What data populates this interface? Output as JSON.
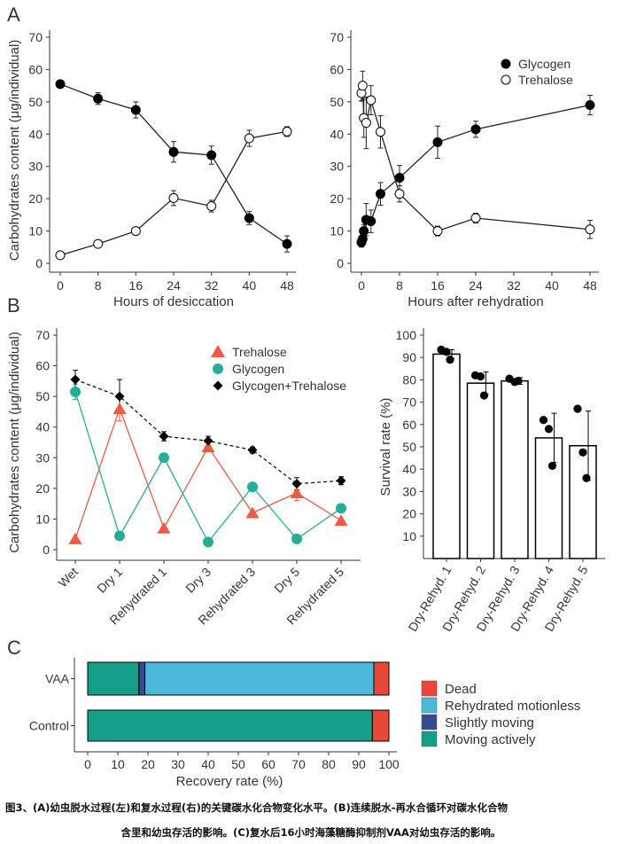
{
  "caption": {
    "line1": "图3、(A)幼虫脱水过程(左)和复水过程(右)的关键碳水化合物变化水平。(B)连续脱水-再水合循环对碳水化合物",
    "line2": "含里和幼虫存活的影响。(C)复水后16小时海藻糖酶抑制剂VAA对幼虫存活的影响。"
  },
  "panel_letters": [
    "A",
    "B",
    "C"
  ],
  "colors": {
    "trehalose_b": "#ef5a42",
    "glycogen_b": "#26ad98",
    "dead": "#e8473a",
    "rehydrated_motionless": "#4cb9db",
    "slightly_moving": "#334c8c",
    "moving_actively": "#14a088"
  },
  "chart_data": [
    {
      "panel": "A-left",
      "type": "line",
      "xlabel": "Hours of desiccation",
      "ylabel": "Carbohydrates content (μg/individual)",
      "xlim": [
        0,
        48
      ],
      "ylim": [
        0,
        70
      ],
      "xticks": [
        0,
        8,
        16,
        24,
        32,
        40,
        48
      ],
      "yticks": [
        0,
        10,
        20,
        30,
        40,
        50,
        60,
        70
      ],
      "series": [
        {
          "name": "Glycogen",
          "x": [
            0,
            8,
            16,
            24,
            32,
            40,
            48
          ],
          "values": [
            55.5,
            51,
            47.5,
            34.5,
            33.5,
            14,
            6
          ],
          "err": [
            0.7,
            1.8,
            2.5,
            3.2,
            2.8,
            2.0,
            2.5
          ]
        },
        {
          "name": "Trehalose",
          "x": [
            0,
            8,
            16,
            24,
            32,
            40,
            48
          ],
          "values": [
            2.5,
            6,
            10,
            20.2,
            17.7,
            38.7,
            40.8
          ],
          "err": [
            0.5,
            0.7,
            0.8,
            2.3,
            1.8,
            2.5,
            1.5
          ]
        }
      ]
    },
    {
      "panel": "A-right",
      "type": "line",
      "xlabel": "Hours after rehydration",
      "ylabel": "",
      "xlim": [
        0,
        48
      ],
      "ylim": [
        0,
        70
      ],
      "xticks": [
        0,
        8,
        16,
        24,
        32,
        40,
        48
      ],
      "yticks": [
        0,
        10,
        20,
        30,
        40,
        50,
        60,
        70
      ],
      "legend": [
        "Glycogen",
        "Trehalose"
      ],
      "series": [
        {
          "name": "Glycogen",
          "x": [
            0,
            0.25,
            0.5,
            1,
            2,
            4,
            8,
            16,
            24,
            48
          ],
          "values": [
            6.5,
            7.5,
            10,
            13.5,
            13,
            21.5,
            26.5,
            37.5,
            41.5,
            49
          ],
          "err": [
            1.5,
            1.8,
            2.0,
            5.0,
            3.5,
            3.5,
            3.8,
            5.0,
            2.5,
            3.0
          ]
        },
        {
          "name": "Trehalose",
          "x": [
            0,
            0.25,
            0.5,
            1,
            2,
            4,
            8,
            16,
            24,
            48
          ],
          "values": [
            52.7,
            55,
            45,
            43.5,
            50.5,
            40.7,
            21.5,
            10,
            14,
            10.5
          ],
          "err": [
            2.5,
            4.5,
            6.0,
            8.0,
            4.5,
            5.0,
            2.5,
            1.5,
            1.5,
            2.8
          ]
        }
      ]
    },
    {
      "panel": "B-left",
      "type": "line",
      "xlabel": "",
      "ylabel": "Carbohydrates content (μg/individual)",
      "ylim": [
        0,
        70
      ],
      "yticks": [
        0,
        10,
        20,
        30,
        40,
        50,
        60,
        70
      ],
      "categories": [
        "Wet",
        "Dry 1",
        "Rehydrated 1",
        "Dry 3",
        "Rehydrated 3",
        "Dry 5",
        "Rehydrated 5"
      ],
      "legend": [
        "Trehalose",
        "Glycogen",
        "Glycogen+Trehalose"
      ],
      "series": [
        {
          "name": "Trehalose",
          "values": [
            3.5,
            46,
            7,
            33.5,
            12,
            18.5,
            9.5
          ],
          "err": [
            0,
            4,
            0,
            1.5,
            0,
            2.5,
            0
          ]
        },
        {
          "name": "Glycogen",
          "values": [
            51.5,
            4.5,
            30,
            2.5,
            20.5,
            3.5,
            13.5
          ],
          "err": [
            2.5,
            0,
            1.5,
            0,
            0,
            0,
            0
          ]
        },
        {
          "name": "Glycogen+Trehalose",
          "values": [
            55.5,
            50,
            37,
            35.5,
            32.5,
            21.5,
            22.5
          ],
          "err": [
            3,
            5.5,
            1.5,
            1.5,
            1,
            2,
            1.3
          ]
        }
      ]
    },
    {
      "panel": "B-right",
      "type": "bar",
      "ylabel": "Survival rate (%)",
      "ylim": [
        0,
        100
      ],
      "yticks": [
        10,
        20,
        30,
        40,
        50,
        60,
        70,
        80,
        90,
        100
      ],
      "categories": [
        "Dry-Rehyd. 1",
        "Dry-Rehyd. 2",
        "Dry-Rehyd. 3",
        "Dry-Rehyd. 4",
        "Dry-Rehyd. 5"
      ],
      "values": [
        91.5,
        78.5,
        79.5,
        54,
        50.5
      ],
      "err": [
        2,
        5,
        1.5,
        11,
        15.5
      ],
      "points": [
        [
          93.5,
          92.5,
          89
        ],
        [
          82,
          81.5,
          73
        ],
        [
          80.5,
          79,
          79.5
        ],
        [
          62,
          58,
          41.5
        ],
        [
          67,
          47.5,
          36
        ]
      ]
    },
    {
      "panel": "C",
      "type": "bar",
      "orientation": "horizontal-stacked",
      "xlabel": "Recovery rate (%)",
      "xlim": [
        0,
        100
      ],
      "xticks": [
        0,
        10,
        20,
        30,
        40,
        50,
        60,
        70,
        80,
        90,
        100
      ],
      "categories": [
        "VAA",
        "Control"
      ],
      "legend": [
        "Dead",
        "Rehydrated motionless",
        "Slightly moving",
        "Moving actively"
      ],
      "series": [
        {
          "name": "Moving actively",
          "values": [
            17,
            94.5
          ]
        },
        {
          "name": "Slightly moving",
          "values": [
            2,
            0
          ]
        },
        {
          "name": "Rehydrated motionless",
          "values": [
            76,
            0
          ]
        },
        {
          "name": "Dead",
          "values": [
            5,
            5.5
          ]
        }
      ]
    }
  ]
}
